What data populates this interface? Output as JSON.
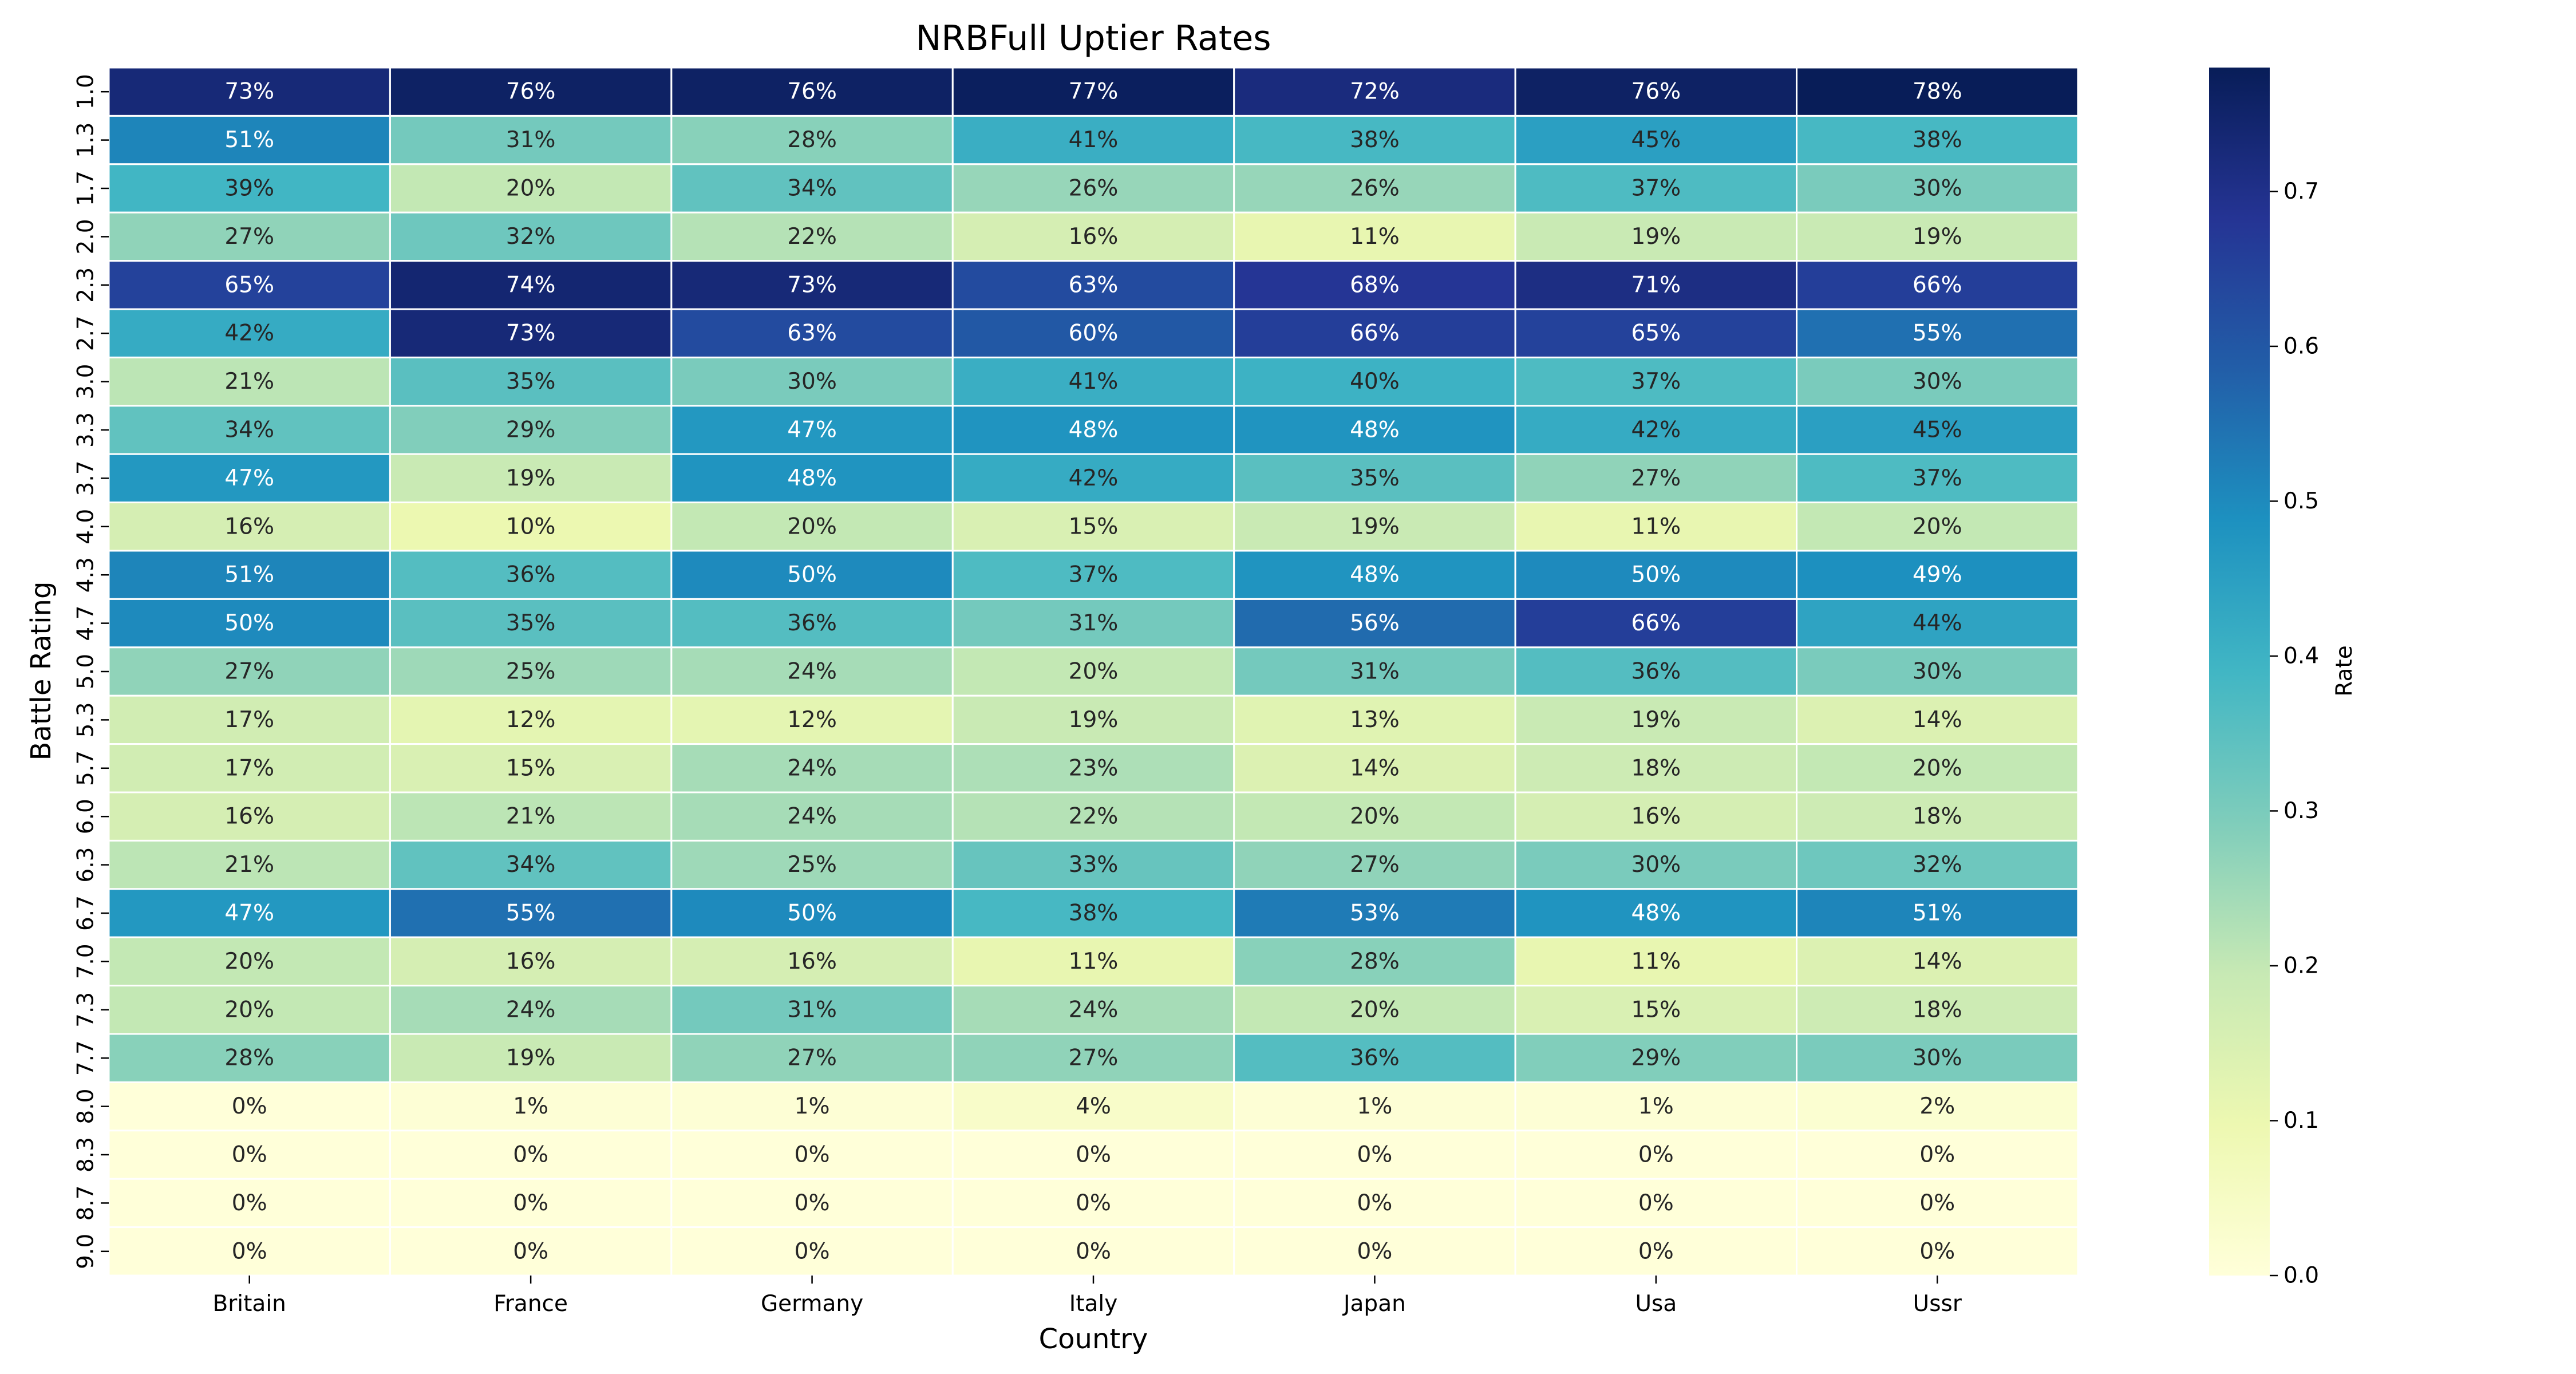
{
  "chart_data": {
    "type": "heatmap",
    "title": "NRBFull Uptier Rates",
    "xlabel": "Country",
    "ylabel": "Battle Rating",
    "colorbar_label": "Rate",
    "colormap": "YlGnBu",
    "vmin": 0.0,
    "vmax": 0.78,
    "colorbar_ticks": [
      "0.0",
      "0.1",
      "0.2",
      "0.3",
      "0.4",
      "0.5",
      "0.6",
      "0.7"
    ],
    "x_categories": [
      "Britain",
      "France",
      "Germany",
      "Italy",
      "Japan",
      "Usa",
      "Ussr"
    ],
    "y_categories": [
      "1.0",
      "1.3",
      "1.7",
      "2.0",
      "2.3",
      "2.7",
      "3.0",
      "3.3",
      "3.7",
      "4.0",
      "4.3",
      "4.7",
      "5.0",
      "5.3",
      "5.7",
      "6.0",
      "6.3",
      "6.7",
      "7.0",
      "7.3",
      "7.7",
      "8.0",
      "8.3",
      "8.7",
      "9.0"
    ],
    "values": [
      [
        0.73,
        0.76,
        0.76,
        0.77,
        0.72,
        0.76,
        0.78
      ],
      [
        0.51,
        0.31,
        0.28,
        0.41,
        0.38,
        0.45,
        0.38
      ],
      [
        0.39,
        0.2,
        0.34,
        0.26,
        0.26,
        0.37,
        0.3
      ],
      [
        0.27,
        0.32,
        0.22,
        0.16,
        0.11,
        0.19,
        0.19
      ],
      [
        0.65,
        0.74,
        0.73,
        0.63,
        0.68,
        0.71,
        0.66
      ],
      [
        0.42,
        0.73,
        0.63,
        0.6,
        0.66,
        0.65,
        0.55
      ],
      [
        0.21,
        0.35,
        0.3,
        0.41,
        0.4,
        0.37,
        0.3
      ],
      [
        0.34,
        0.29,
        0.47,
        0.48,
        0.48,
        0.42,
        0.45
      ],
      [
        0.47,
        0.19,
        0.48,
        0.42,
        0.35,
        0.27,
        0.37
      ],
      [
        0.16,
        0.1,
        0.2,
        0.15,
        0.19,
        0.11,
        0.2
      ],
      [
        0.51,
        0.36,
        0.5,
        0.37,
        0.48,
        0.5,
        0.49
      ],
      [
        0.5,
        0.35,
        0.36,
        0.31,
        0.56,
        0.66,
        0.44
      ],
      [
        0.27,
        0.25,
        0.24,
        0.2,
        0.31,
        0.36,
        0.3
      ],
      [
        0.17,
        0.12,
        0.12,
        0.19,
        0.13,
        0.19,
        0.14
      ],
      [
        0.17,
        0.15,
        0.24,
        0.23,
        0.14,
        0.18,
        0.2
      ],
      [
        0.16,
        0.21,
        0.24,
        0.22,
        0.2,
        0.16,
        0.18
      ],
      [
        0.21,
        0.34,
        0.25,
        0.33,
        0.27,
        0.3,
        0.32
      ],
      [
        0.47,
        0.55,
        0.5,
        0.38,
        0.53,
        0.48,
        0.51
      ],
      [
        0.2,
        0.16,
        0.16,
        0.11,
        0.28,
        0.11,
        0.14
      ],
      [
        0.2,
        0.24,
        0.31,
        0.24,
        0.2,
        0.15,
        0.18
      ],
      [
        0.28,
        0.19,
        0.27,
        0.27,
        0.36,
        0.29,
        0.3
      ],
      [
        0.0,
        0.01,
        0.01,
        0.04,
        0.01,
        0.01,
        0.02
      ],
      [
        0.0,
        0.0,
        0.0,
        0.0,
        0.0,
        0.0,
        0.0
      ],
      [
        0.0,
        0.0,
        0.0,
        0.0,
        0.0,
        0.0,
        0.0
      ],
      [
        0.0,
        0.0,
        0.0,
        0.0,
        0.0,
        0.0,
        0.0
      ]
    ],
    "annotations": [
      [
        "73%",
        "76%",
        "76%",
        "77%",
        "72%",
        "76%",
        "78%"
      ],
      [
        "51%",
        "31%",
        "28%",
        "41%",
        "38%",
        "45%",
        "38%"
      ],
      [
        "39%",
        "20%",
        "34%",
        "26%",
        "26%",
        "37%",
        "30%"
      ],
      [
        "27%",
        "32%",
        "22%",
        "16%",
        "11%",
        "19%",
        "19%"
      ],
      [
        "65%",
        "74%",
        "73%",
        "63%",
        "68%",
        "71%",
        "66%"
      ],
      [
        "42%",
        "73%",
        "63%",
        "60%",
        "66%",
        "65%",
        "55%"
      ],
      [
        "21%",
        "35%",
        "30%",
        "41%",
        "40%",
        "37%",
        "30%"
      ],
      [
        "34%",
        "29%",
        "47%",
        "48%",
        "48%",
        "42%",
        "45%"
      ],
      [
        "47%",
        "19%",
        "48%",
        "42%",
        "35%",
        "27%",
        "37%"
      ],
      [
        "16%",
        "10%",
        "20%",
        "15%",
        "19%",
        "11%",
        "20%"
      ],
      [
        "51%",
        "36%",
        "50%",
        "37%",
        "48%",
        "50%",
        "49%"
      ],
      [
        "50%",
        "35%",
        "36%",
        "31%",
        "56%",
        "66%",
        "44%"
      ],
      [
        "27%",
        "25%",
        "24%",
        "20%",
        "31%",
        "36%",
        "30%"
      ],
      [
        "17%",
        "12%",
        "12%",
        "19%",
        "13%",
        "19%",
        "14%"
      ],
      [
        "17%",
        "15%",
        "24%",
        "23%",
        "14%",
        "18%",
        "20%"
      ],
      [
        "16%",
        "21%",
        "24%",
        "22%",
        "20%",
        "16%",
        "18%"
      ],
      [
        "21%",
        "34%",
        "25%",
        "33%",
        "27%",
        "30%",
        "32%"
      ],
      [
        "47%",
        "55%",
        "50%",
        "38%",
        "53%",
        "48%",
        "51%"
      ],
      [
        "20%",
        "16%",
        "16%",
        "11%",
        "28%",
        "11%",
        "14%"
      ],
      [
        "20%",
        "24%",
        "31%",
        "24%",
        "20%",
        "15%",
        "18%"
      ],
      [
        "28%",
        "19%",
        "27%",
        "27%",
        "36%",
        "29%",
        "30%"
      ],
      [
        "0%",
        "1%",
        "1%",
        "4%",
        "1%",
        "1%",
        "2%"
      ],
      [
        "0%",
        "0%",
        "0%",
        "0%",
        "0%",
        "0%",
        "0%"
      ],
      [
        "0%",
        "0%",
        "0%",
        "0%",
        "0%",
        "0%",
        "0%"
      ],
      [
        "0%",
        "0%",
        "0%",
        "0%",
        "0%",
        "0%",
        "0%"
      ]
    ]
  }
}
